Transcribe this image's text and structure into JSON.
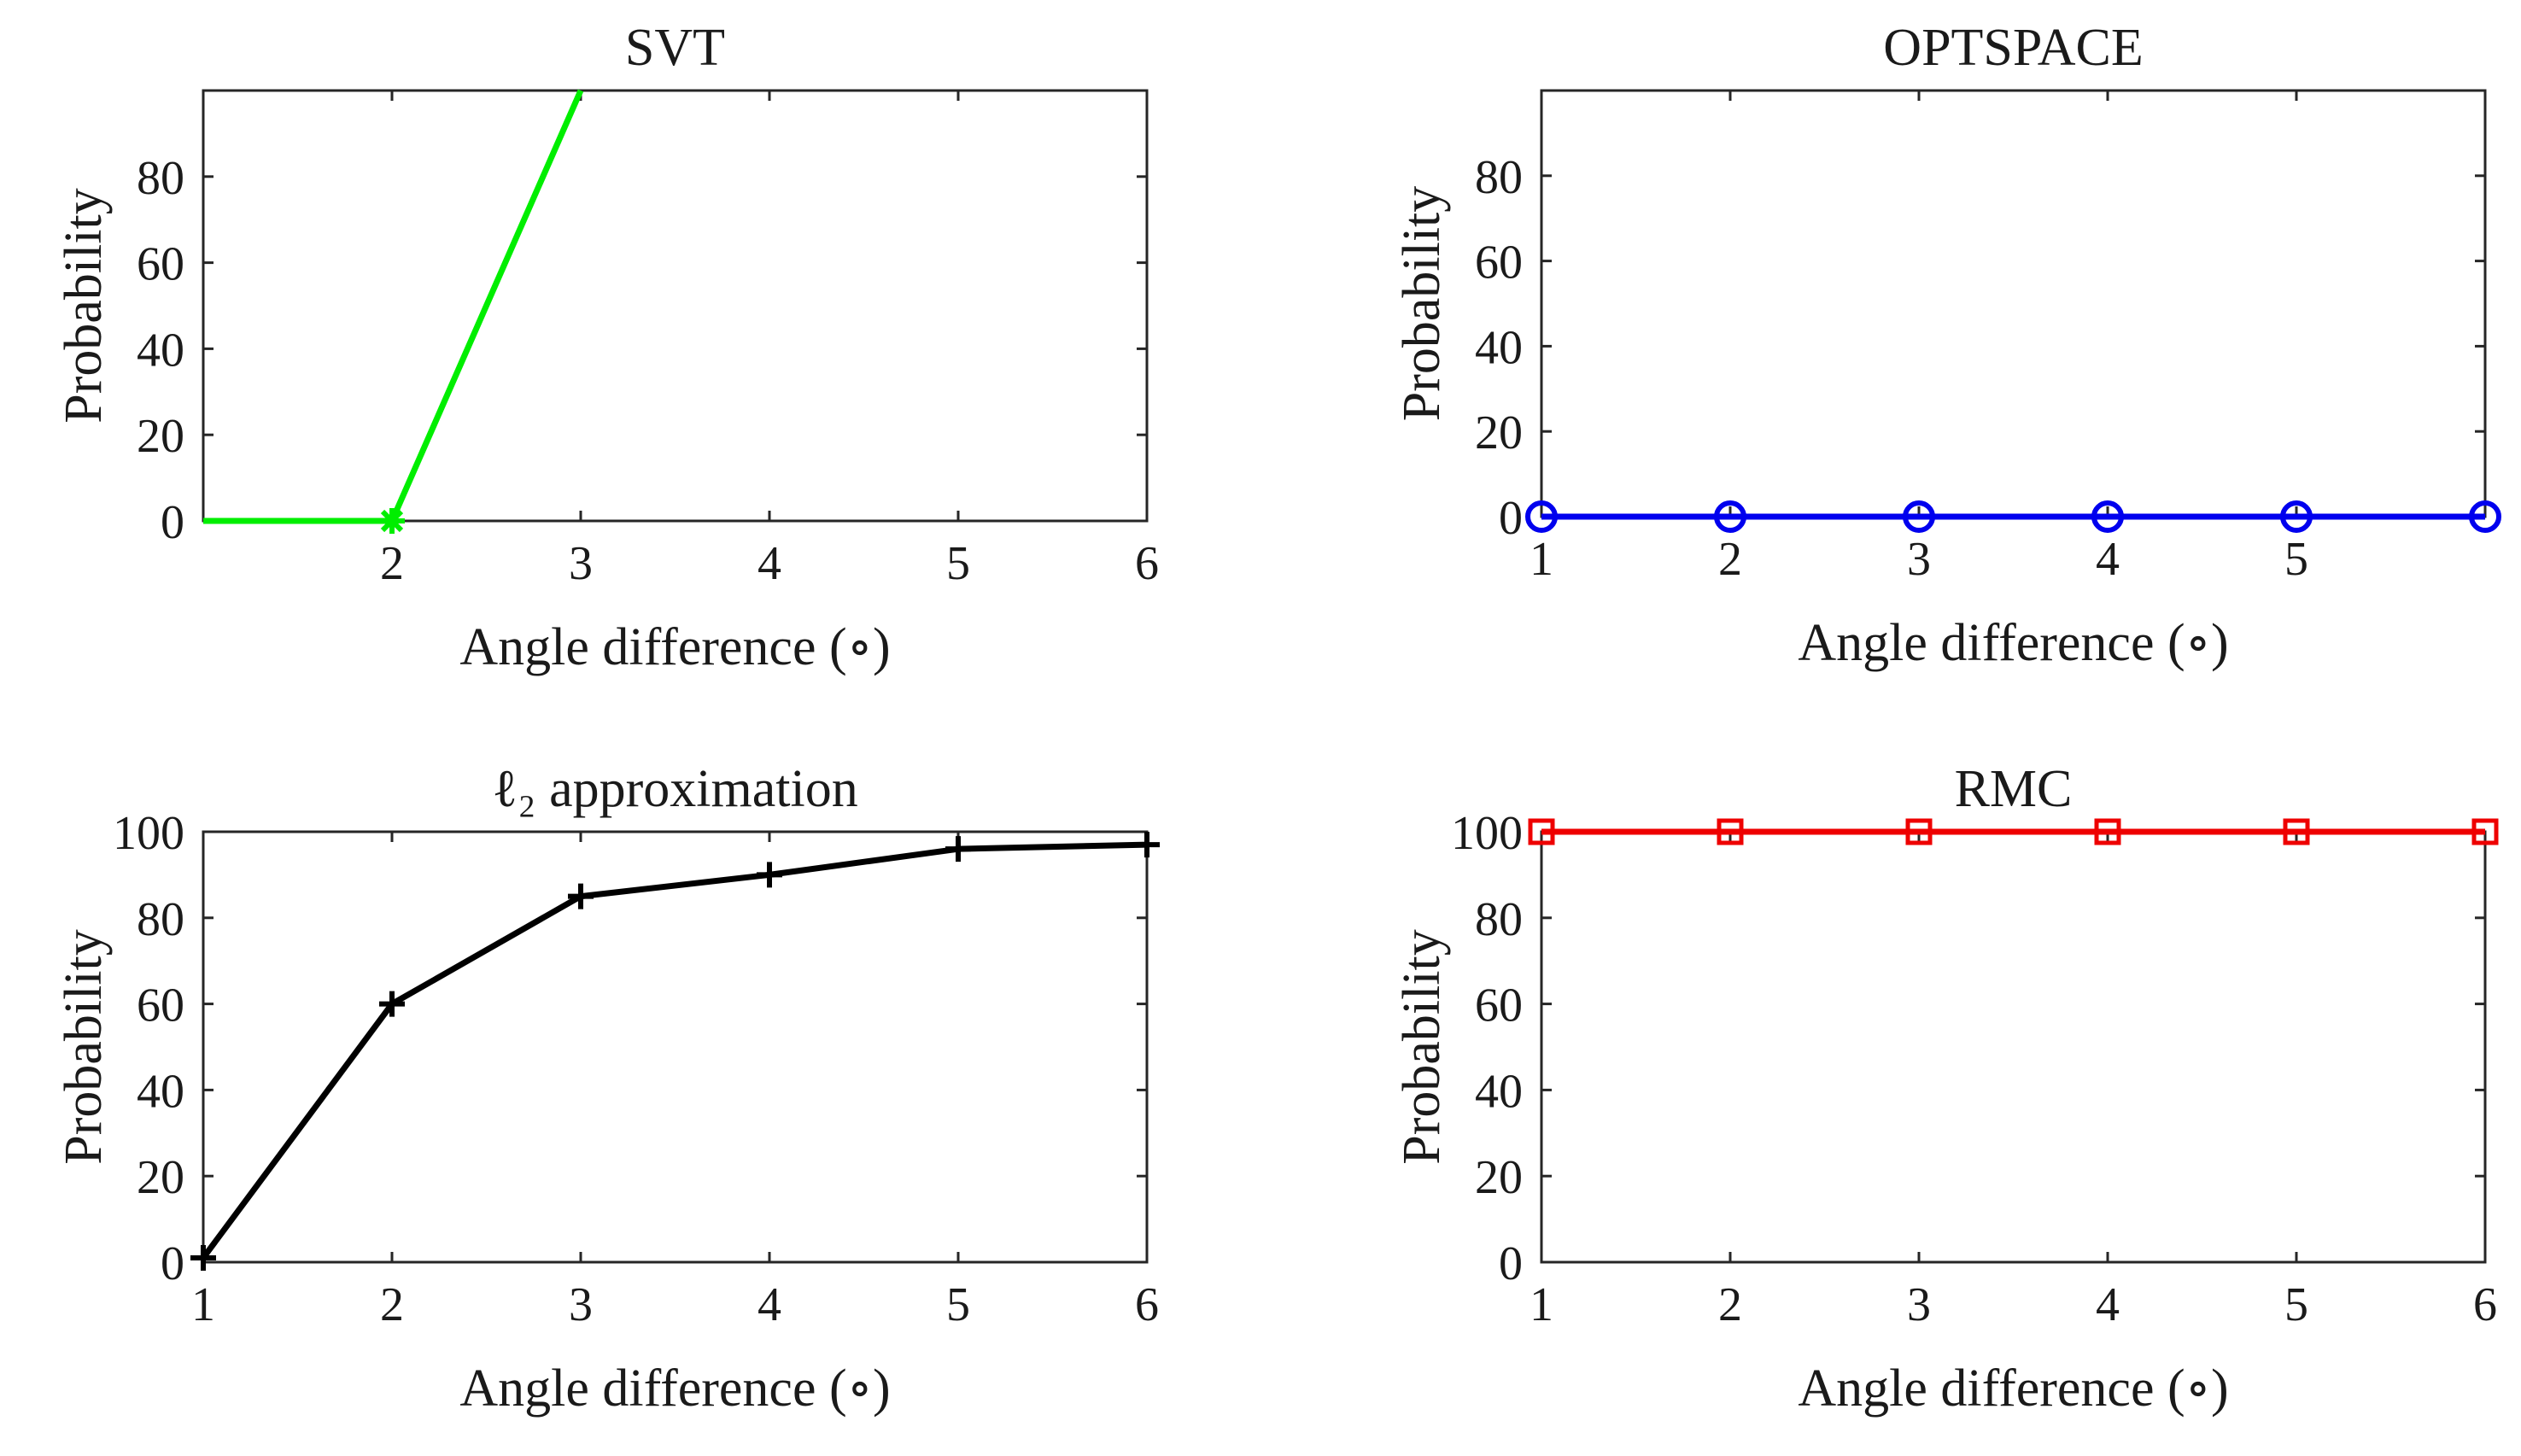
{
  "chart_data": [
    {
      "type": "line",
      "title": "SVT",
      "xlabel": "Angle difference (∘)",
      "ylabel": "Probability",
      "xlim": [
        1,
        6
      ],
      "ylim": [
        0,
        100
      ],
      "xticks": [
        "2",
        "3",
        "4",
        "5",
        "6"
      ],
      "yticks": [
        "0",
        "20",
        "40",
        "60",
        "80"
      ],
      "grid": false,
      "box": true,
      "series": [
        {
          "x": [
            1,
            2,
            3
          ],
          "values": [
            0,
            0,
            100
          ],
          "color": "#00ee00",
          "marker": "asterisk",
          "marker_at": [
            2
          ]
        }
      ]
    },
    {
      "type": "line",
      "title": "OPTSPACE",
      "xlabel": "Angle difference (∘)",
      "ylabel": "Probability",
      "xlim": [
        1,
        6
      ],
      "ylim": [
        0,
        100
      ],
      "xticks": [
        "1",
        "2",
        "3",
        "4",
        "5"
      ],
      "yticks": [
        "0",
        "20",
        "40",
        "60",
        "80"
      ],
      "grid": false,
      "box": true,
      "series": [
        {
          "x": [
            1,
            2,
            3,
            4,
            5,
            6
          ],
          "values": [
            0,
            0,
            0,
            0,
            0,
            0
          ],
          "color": "#0000ee",
          "marker": "circle"
        }
      ]
    },
    {
      "type": "line",
      "title": "ℓ₂ approximation",
      "xlabel": "Angle difference (∘)",
      "ylabel": "Probability",
      "xlim": [
        1,
        6
      ],
      "ylim": [
        0,
        100
      ],
      "xticks": [
        "1",
        "2",
        "3",
        "4",
        "5",
        "6"
      ],
      "yticks": [
        "0",
        "20",
        "40",
        "60",
        "80",
        "100"
      ],
      "grid": false,
      "box": true,
      "series": [
        {
          "x": [
            1,
            2,
            3,
            4,
            5,
            6
          ],
          "values": [
            1,
            60,
            85,
            90,
            96,
            97
          ],
          "color": "#000000",
          "marker": "plus"
        }
      ]
    },
    {
      "type": "line",
      "title": "RMC",
      "xlabel": "Angle difference (∘)",
      "ylabel": "Probability",
      "xlim": [
        1,
        6
      ],
      "ylim": [
        0,
        100
      ],
      "xticks": [
        "1",
        "2",
        "3",
        "4",
        "5",
        "6"
      ],
      "yticks": [
        "0",
        "20",
        "40",
        "60",
        "80",
        "100"
      ],
      "grid": false,
      "box": true,
      "series": [
        {
          "x": [
            1,
            2,
            3,
            4,
            5,
            6
          ],
          "values": [
            100,
            100,
            100,
            100,
            100,
            100
          ],
          "color": "#ee0000",
          "marker": "square"
        }
      ]
    }
  ]
}
